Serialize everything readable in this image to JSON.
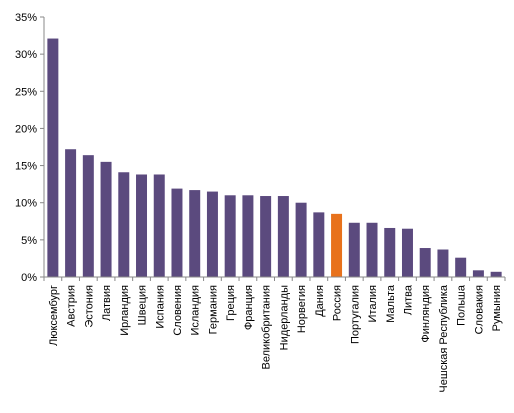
{
  "chart_data": {
    "type": "bar",
    "title": "",
    "xlabel": "",
    "ylabel": "",
    "ylim": [
      0,
      35
    ],
    "y_ticks": [
      "0%",
      "5%",
      "10%",
      "15%",
      "20%",
      "25%",
      "30%",
      "35%"
    ],
    "y_tick_values": [
      0,
      5,
      10,
      15,
      20,
      25,
      30,
      35
    ],
    "grid": false,
    "legend": "none",
    "bar_color": "#5b4a7e",
    "highlight_color": "#e8721c",
    "highlight_category": "Россия",
    "categories": [
      "Люксембург",
      "Австрия",
      "Эстония",
      "Латвия",
      "Ирландия",
      "Швеция",
      "Испания",
      "Словения",
      "Исландия",
      "Германия",
      "Греция",
      "Франция",
      "Великобритания",
      "Нидерланды",
      "Норвегия",
      "Дания",
      "Россия",
      "Португалия",
      "Италия",
      "Мальта",
      "Литва",
      "Финляндия",
      "Чешская Республика",
      "Польша",
      "Словакия",
      "Румыния"
    ],
    "values": [
      32.1,
      17.2,
      16.4,
      15.5,
      14.1,
      13.8,
      13.8,
      11.9,
      11.7,
      11.5,
      11.0,
      11.0,
      10.9,
      10.9,
      10.0,
      8.7,
      8.5,
      7.3,
      7.3,
      6.6,
      6.5,
      3.9,
      3.7,
      2.6,
      0.9,
      0.7
    ]
  }
}
